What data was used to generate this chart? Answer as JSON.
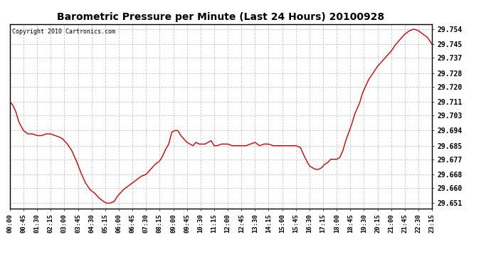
{
  "title": "Barometric Pressure per Minute (Last 24 Hours) 20100928",
  "copyright": "Copyright 2010 Cartronics.com",
  "line_color": "#cc0000",
  "background_color": "#ffffff",
  "grid_color": "#c8c8c8",
  "yticks": [
    29.651,
    29.66,
    29.668,
    29.677,
    29.685,
    29.694,
    29.703,
    29.711,
    29.72,
    29.728,
    29.737,
    29.745,
    29.754
  ],
  "ylim": [
    29.648,
    29.757
  ],
  "xtick_labels": [
    "00:00",
    "00:45",
    "01:30",
    "02:15",
    "03:00",
    "03:45",
    "04:30",
    "05:15",
    "06:00",
    "06:45",
    "07:30",
    "08:15",
    "09:00",
    "09:45",
    "10:30",
    "11:15",
    "12:00",
    "12:45",
    "13:30",
    "14:15",
    "15:00",
    "15:45",
    "16:30",
    "17:15",
    "18:00",
    "18:45",
    "19:30",
    "20:15",
    "21:00",
    "21:45",
    "22:30",
    "23:15"
  ],
  "keypoints_x": [
    0,
    10,
    20,
    30,
    45,
    60,
    75,
    90,
    105,
    120,
    135,
    150,
    165,
    175,
    190,
    205,
    220,
    235,
    250,
    265,
    280,
    295,
    310,
    320,
    330,
    345,
    355,
    365,
    375,
    390,
    405,
    420,
    435,
    450,
    465,
    480,
    495,
    505,
    515,
    525,
    535,
    545,
    555,
    565,
    575,
    585,
    595,
    605,
    615,
    625,
    635,
    645,
    655,
    665,
    675,
    685,
    700,
    710,
    720,
    735,
    750,
    765,
    780,
    795,
    810,
    825,
    840,
    855,
    870,
    885,
    900,
    915,
    930,
    945,
    960,
    975,
    990,
    1000,
    1010,
    1020,
    1030,
    1040,
    1050,
    1060,
    1070,
    1080,
    1090,
    1100,
    1110,
    1120,
    1130,
    1140,
    1155,
    1165,
    1175,
    1185,
    1200,
    1215,
    1230,
    1245,
    1260,
    1275,
    1290,
    1305,
    1320,
    1335,
    1350,
    1365,
    1380,
    1395
  ],
  "keypoints_y": [
    29.711,
    29.709,
    29.705,
    29.699,
    29.694,
    29.692,
    29.692,
    29.691,
    29.691,
    29.692,
    29.692,
    29.691,
    29.69,
    29.689,
    29.686,
    29.682,
    29.676,
    29.669,
    29.663,
    29.659,
    29.657,
    29.654,
    29.652,
    29.651,
    29.651,
    29.652,
    29.655,
    29.657,
    29.659,
    29.661,
    29.663,
    29.665,
    29.667,
    29.668,
    29.671,
    29.674,
    29.676,
    29.679,
    29.683,
    29.686,
    29.693,
    29.694,
    29.694,
    29.691,
    29.689,
    29.687,
    29.686,
    29.685,
    29.687,
    29.686,
    29.686,
    29.686,
    29.687,
    29.688,
    29.685,
    29.685,
    29.686,
    29.686,
    29.686,
    29.685,
    29.685,
    29.685,
    29.685,
    29.686,
    29.687,
    29.685,
    29.686,
    29.686,
    29.685,
    29.685,
    29.685,
    29.685,
    29.685,
    29.685,
    29.684,
    29.678,
    29.673,
    29.672,
    29.671,
    29.671,
    29.672,
    29.674,
    29.675,
    29.677,
    29.677,
    29.677,
    29.678,
    29.682,
    29.688,
    29.693,
    29.698,
    29.704,
    29.71,
    29.716,
    29.72,
    29.724,
    29.728,
    29.732,
    29.735,
    29.738,
    29.741,
    29.745,
    29.748,
    29.751,
    29.753,
    29.754,
    29.753,
    29.751,
    29.749,
    29.745
  ]
}
